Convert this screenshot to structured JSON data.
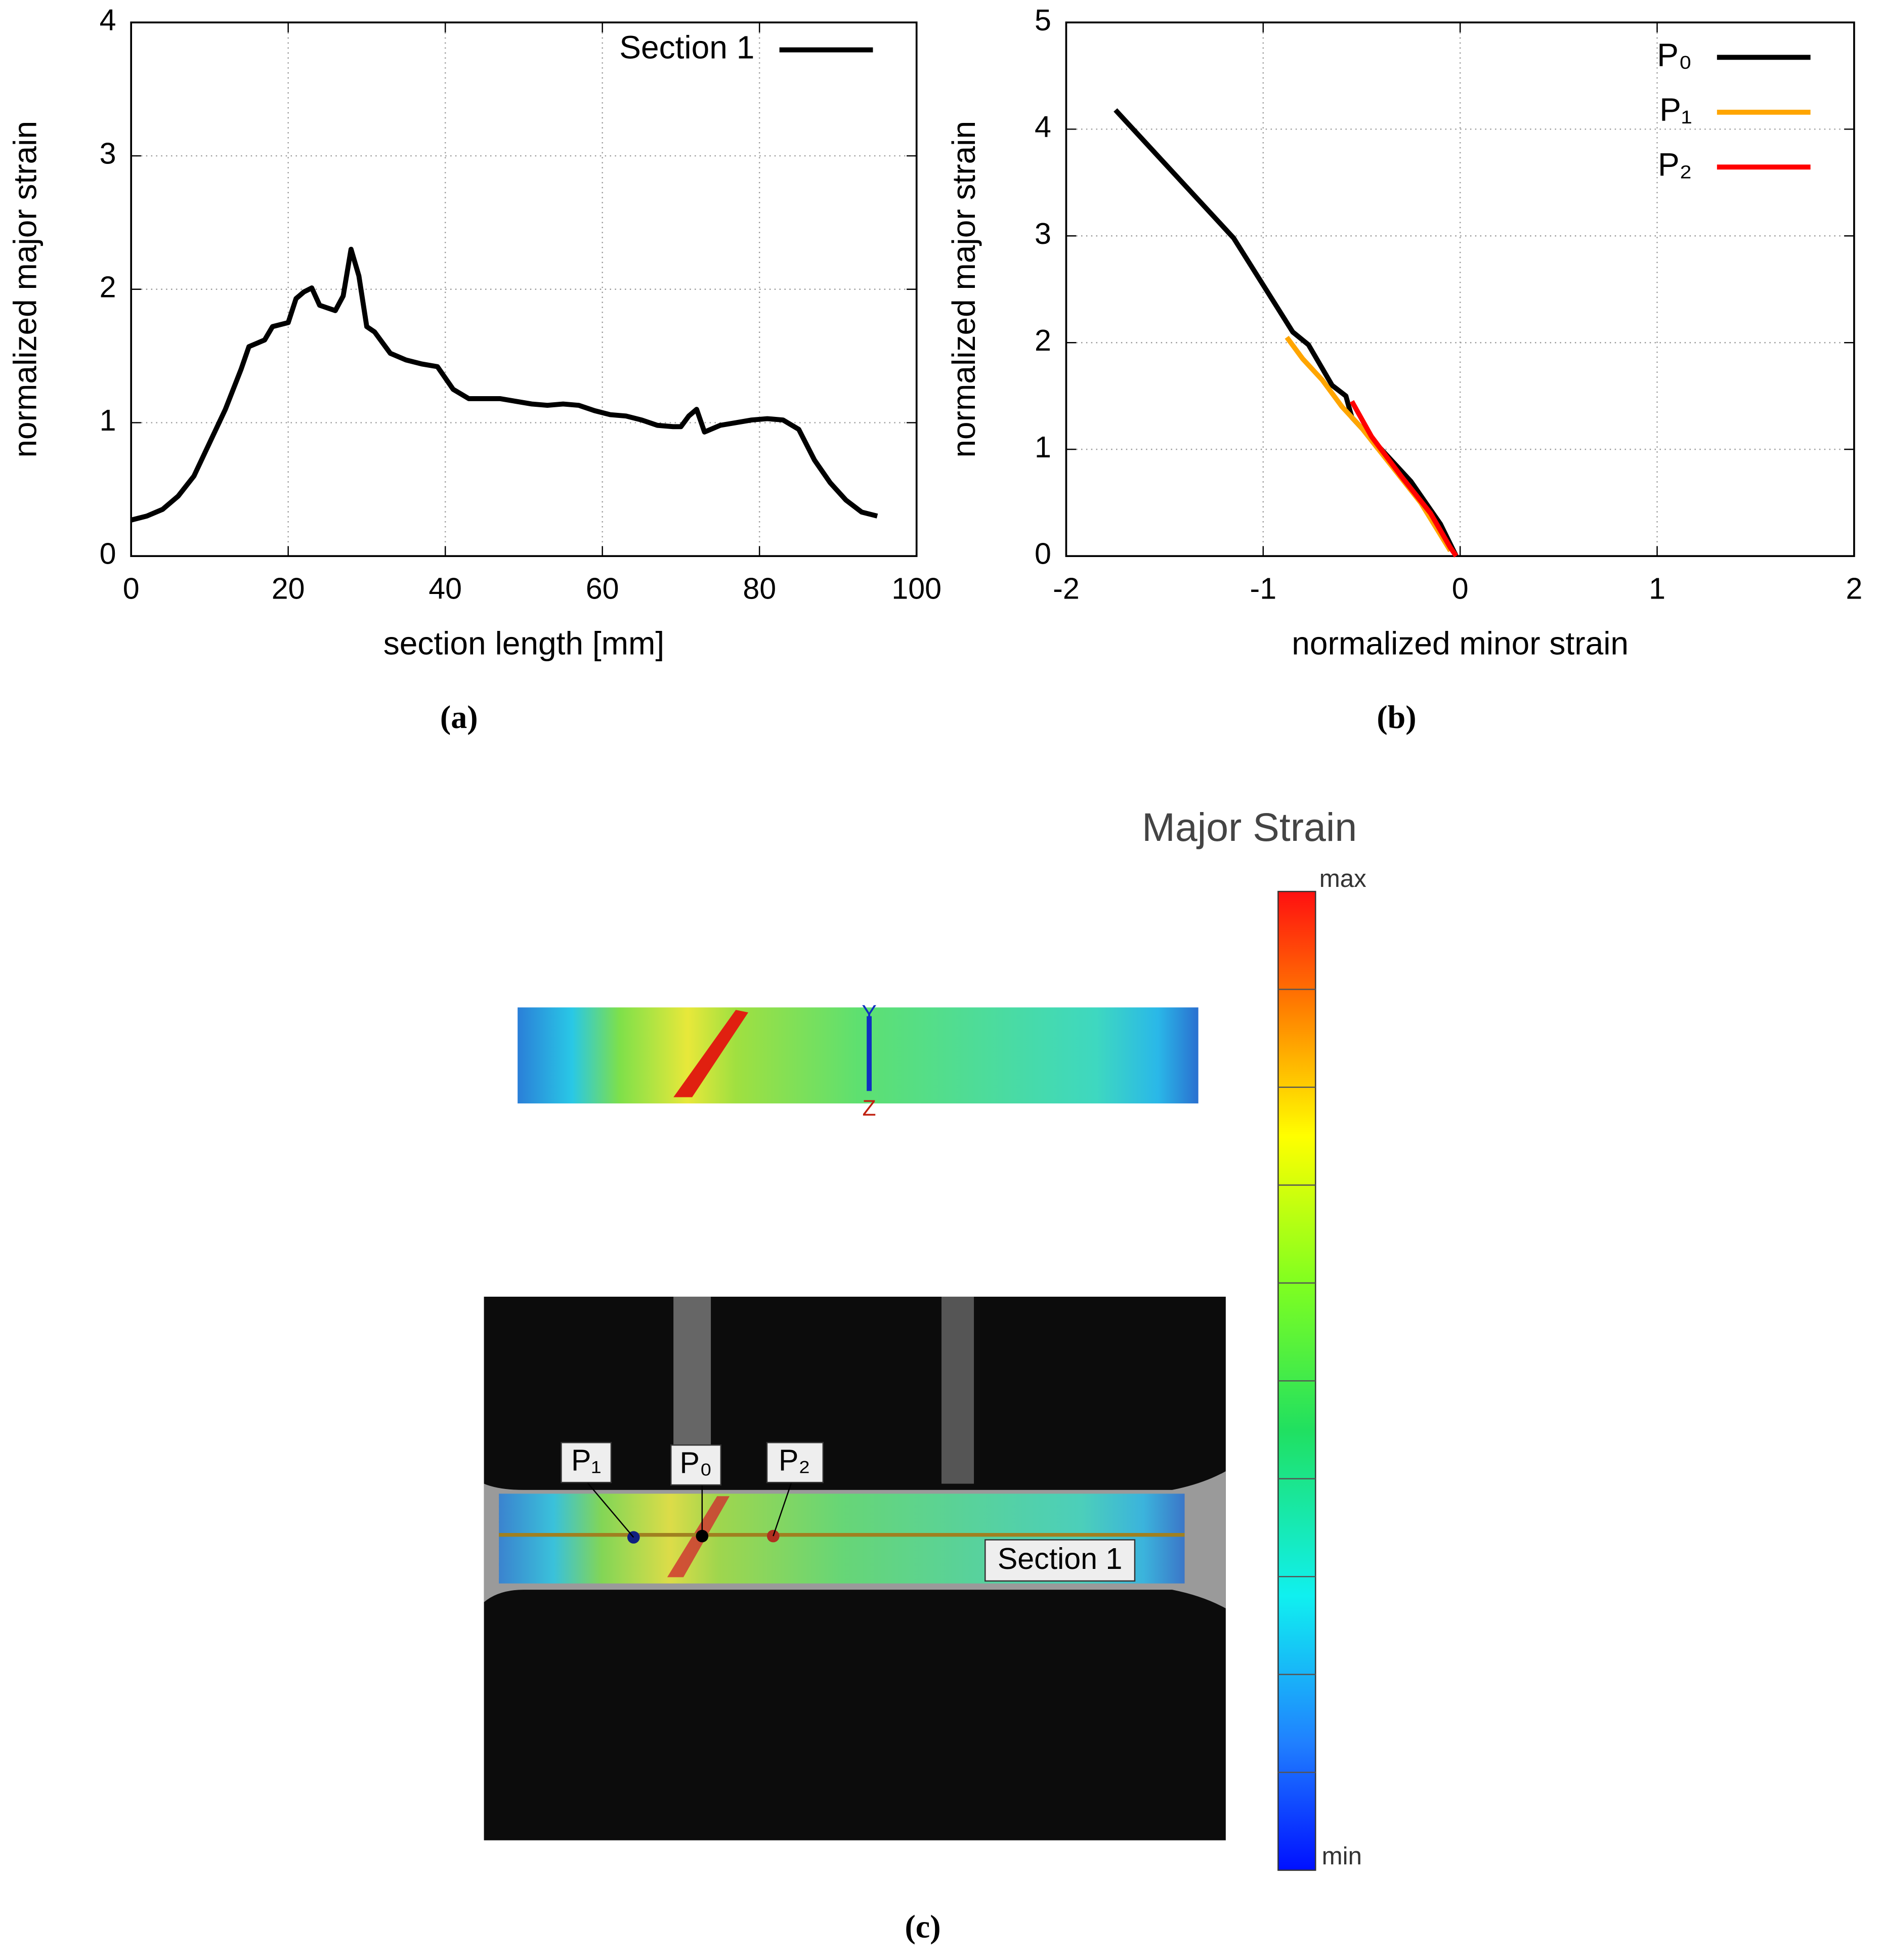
{
  "chart_data": [
    {
      "type": "line",
      "xlabel": "section length [mm]",
      "ylabel": "normalized major strain",
      "x": [
        0,
        2,
        4,
        6,
        8,
        10,
        12,
        14,
        15,
        17,
        18,
        20,
        21,
        22,
        23,
        24,
        25,
        26,
        27,
        28,
        29,
        30,
        31,
        33,
        35,
        37,
        39,
        41,
        43,
        45,
        47,
        49,
        51,
        53,
        55,
        57,
        59,
        61,
        63,
        65,
        67,
        69,
        70,
        71,
        72,
        73,
        75,
        77,
        79,
        81,
        83,
        85,
        87,
        89,
        91,
        93,
        95
      ],
      "series": [
        {
          "name": "Section 1",
          "color": "#000000",
          "values": [
            0.27,
            0.3,
            0.35,
            0.45,
            0.6,
            0.85,
            1.1,
            1.4,
            1.57,
            1.62,
            1.72,
            1.75,
            1.93,
            1.98,
            2.01,
            1.88,
            1.86,
            1.84,
            1.95,
            2.3,
            2.1,
            1.72,
            1.68,
            1.52,
            1.47,
            1.44,
            1.42,
            1.25,
            1.18,
            1.18,
            1.18,
            1.16,
            1.14,
            1.13,
            1.14,
            1.13,
            1.09,
            1.06,
            1.05,
            1.02,
            0.98,
            0.97,
            0.97,
            1.05,
            1.1,
            0.93,
            0.98,
            1.0,
            1.02,
            1.03,
            1.02,
            0.95,
            0.72,
            0.55,
            0.42,
            0.33,
            0.3
          ]
        }
      ],
      "xlim": [
        0,
        100
      ],
      "ylim": [
        0,
        4
      ],
      "xticks": [
        0,
        20,
        40,
        60,
        80,
        100
      ],
      "yticks": [
        0,
        1,
        2,
        3,
        4
      ],
      "grid": true,
      "legend": "upper right"
    },
    {
      "type": "line",
      "xlabel": "normalized minor strain",
      "ylabel": "normalized major strain",
      "series": [
        {
          "name": "P₀",
          "color": "#000000",
          "x": [
            -1.75,
            -1.15,
            -0.85,
            -0.77,
            -0.65,
            -0.58,
            -0.55,
            -0.4,
            -0.25,
            -0.1,
            -0.02
          ],
          "values": [
            4.18,
            2.98,
            2.1,
            1.98,
            1.6,
            1.5,
            1.3,
            1.0,
            0.7,
            0.3,
            0
          ]
        },
        {
          "name": "P₁",
          "color": "#ffa500",
          "x": [
            -0.88,
            -0.8,
            -0.7,
            -0.6,
            -0.5,
            -0.35,
            -0.2,
            -0.05
          ],
          "values": [
            2.05,
            1.85,
            1.65,
            1.4,
            1.2,
            0.85,
            0.5,
            0.05
          ]
        },
        {
          "name": "P₂",
          "color": "#ff0000",
          "x": [
            -0.55,
            -0.45,
            -0.3,
            -0.15,
            -0.05,
            -0.02
          ],
          "values": [
            1.45,
            1.12,
            0.75,
            0.4,
            0.08,
            0
          ]
        }
      ],
      "xlim": [
        -2,
        2
      ],
      "ylim": [
        0,
        5
      ],
      "xticks": [
        -2,
        -1,
        0,
        1,
        2
      ],
      "yticks": [
        0,
        1,
        2,
        3,
        4,
        5
      ],
      "grid": true,
      "legend": "upper right"
    }
  ],
  "figure_c": {
    "colorbar_title": "Major Strain",
    "colorbar_max": "max",
    "colorbar_min": "min",
    "points": [
      "P₁",
      "P₀",
      "P₂"
    ],
    "section_label": "Section 1",
    "axes": [
      "Y",
      "Z"
    ]
  },
  "captions": [
    "(a)",
    "(b)",
    "(c)"
  ]
}
